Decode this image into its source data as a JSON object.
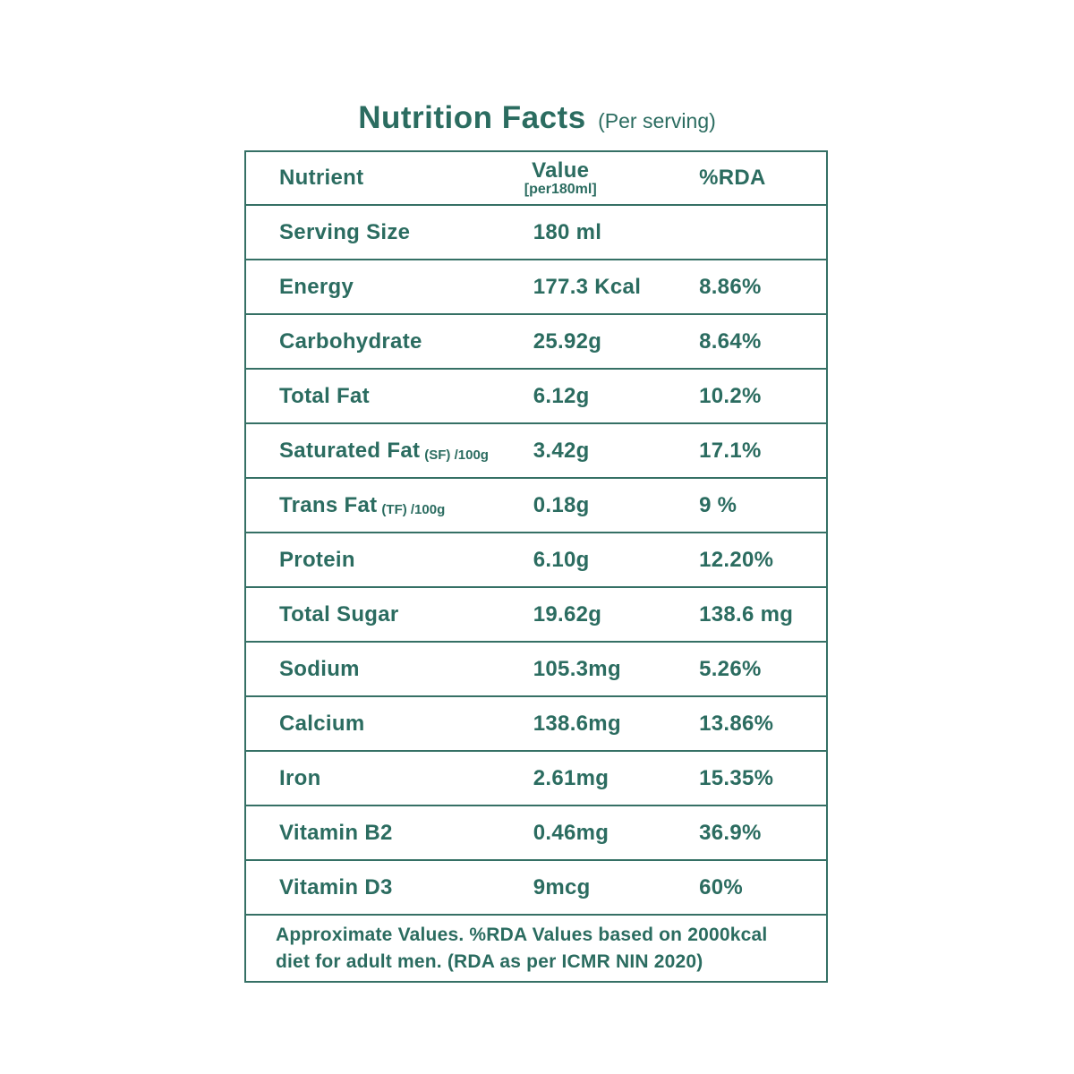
{
  "title": {
    "main": "Nutrition Facts",
    "sub": "(Per serving)"
  },
  "table": {
    "headers": {
      "nutrient": "Nutrient",
      "value": "Value",
      "value_sub": "[per180ml]",
      "rda": "%RDA"
    },
    "rows": [
      {
        "nutrient": "Serving Size",
        "note": "",
        "value": "180 ml",
        "rda": ""
      },
      {
        "nutrient": "Energy",
        "note": "",
        "value": "177.3 Kcal",
        "rda": "8.86%"
      },
      {
        "nutrient": "Carbohydrate",
        "note": "",
        "value": "25.92g",
        "rda": "8.64%"
      },
      {
        "nutrient": "Total Fat",
        "note": "",
        "value": "6.12g",
        "rda": "10.2%"
      },
      {
        "nutrient": "Saturated Fat",
        "note": "(SF) /100g",
        "value": "3.42g",
        "rda": "17.1%"
      },
      {
        "nutrient": "Trans Fat",
        "note": "(TF) /100g",
        "value": "0.18g",
        "rda": "9 %"
      },
      {
        "nutrient": "Protein",
        "note": "",
        "value": "6.10g",
        "rda": "12.20%"
      },
      {
        "nutrient": "Total Sugar",
        "note": "",
        "value": "19.62g",
        "rda": "138.6 mg"
      },
      {
        "nutrient": "Sodium",
        "note": "",
        "value": "105.3mg",
        "rda": "5.26%"
      },
      {
        "nutrient": "Calcium",
        "note": "",
        "value": "138.6mg",
        "rda": "13.86%"
      },
      {
        "nutrient": "Iron",
        "note": "",
        "value": "2.61mg",
        "rda": "15.35%"
      },
      {
        "nutrient": "Vitamin B2",
        "note": "",
        "value": "0.46mg",
        "rda": "36.9%"
      },
      {
        "nutrient": "Vitamin D3",
        "note": "",
        "value": "9mcg",
        "rda": "60%"
      }
    ],
    "footnote": "Approximate Values. %RDA Values based on 2000kcal diet for adult men. (RDA as per ICMR NIN 2020)"
  },
  "colors": {
    "accent": "#2b6c60",
    "border": "#357065",
    "background": "#ffffff"
  }
}
